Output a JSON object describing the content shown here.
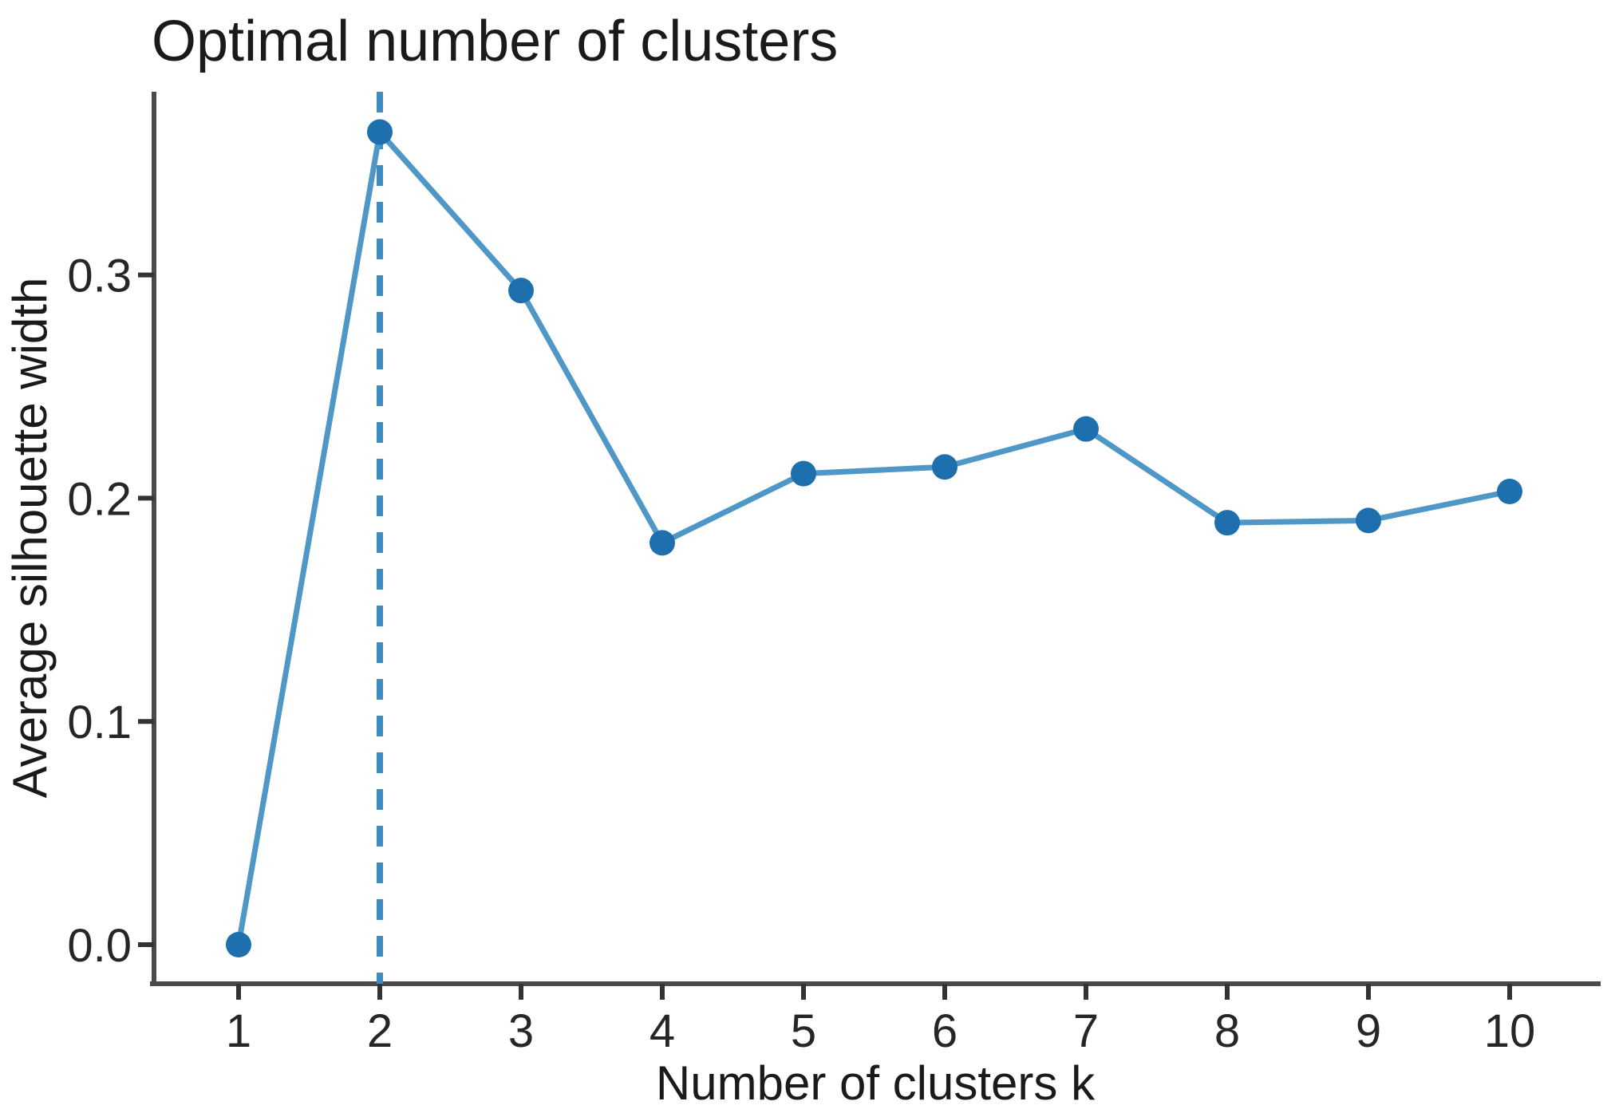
{
  "chart_data": {
    "type": "line",
    "title": "Optimal number of clusters",
    "xlabel": "Number of clusters k",
    "ylabel": "Average silhouette width",
    "series_name": "Average silhouette width",
    "x": [
      1,
      2,
      3,
      4,
      5,
      6,
      7,
      8,
      9,
      10
    ],
    "y": [
      0.0,
      0.364,
      0.293,
      0.18,
      0.211,
      0.214,
      0.231,
      0.189,
      0.19,
      0.203
    ],
    "x_tick_labels": [
      "1",
      "2",
      "3",
      "4",
      "5",
      "6",
      "7",
      "8",
      "9",
      "10"
    ],
    "y_tick_values": [
      0.0,
      0.1,
      0.2,
      0.3
    ],
    "y_tick_labels": [
      "0.0",
      "0.1",
      "0.2",
      "0.3"
    ],
    "xlim": [
      0.4,
      10.65
    ],
    "ylim": [
      0,
      0.382
    ],
    "vline_x": 2,
    "vline_style": "dashed",
    "grid": false,
    "legend": "none",
    "colors": {
      "line": "#4f97c6",
      "point": "#1d6fad",
      "vline": "#3f8dc0",
      "axis": "#4a4a4a",
      "tick": "#333333",
      "text": "#1a1a1a"
    }
  }
}
